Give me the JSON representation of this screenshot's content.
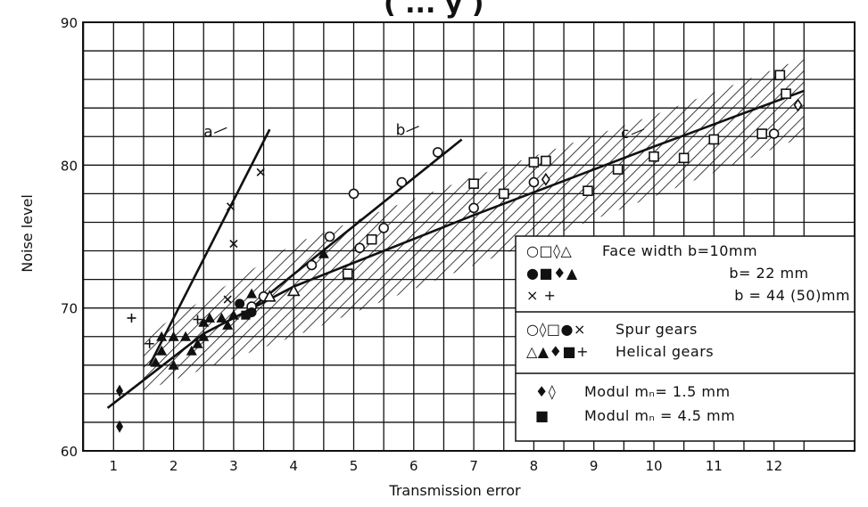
{
  "chart_data": {
    "type": "scatter",
    "title": "",
    "xlabel": "Transmission error",
    "ylabel": "Noise level",
    "xlim": [
      0,
      12.5
    ],
    "ylim": [
      60,
      90
    ],
    "x_ticks": [
      "1",
      "2",
      "3",
      "4",
      "5",
      "6",
      "7",
      "8",
      "9",
      "10",
      "11",
      "12"
    ],
    "y_ticks": [
      "60",
      "70",
      "80",
      "90"
    ],
    "grid": true,
    "band": {
      "upper": [
        [
          1.5,
          68.0
        ],
        [
          4.0,
          74.5
        ],
        [
          7.0,
          79.2
        ],
        [
          10.0,
          83.5
        ],
        [
          12.5,
          87.5
        ]
      ],
      "lower": [
        [
          1.5,
          64.2
        ],
        [
          4.0,
          68.0
        ],
        [
          7.0,
          73.0
        ],
        [
          10.0,
          77.8
        ],
        [
          12.5,
          82.0
        ]
      ]
    },
    "lines": [
      {
        "label": "a",
        "points": [
          [
            1.6,
            66.0
          ],
          [
            3.6,
            82.5
          ]
        ]
      },
      {
        "label": "b",
        "points": [
          [
            3.3,
            70.0
          ],
          [
            6.8,
            81.8
          ]
        ]
      },
      {
        "label": "c",
        "points": [
          [
            0.9,
            63.0
          ],
          [
            2.5,
            68.2
          ],
          [
            4.0,
            71.5
          ],
          [
            7.0,
            76.5
          ],
          [
            10.0,
            81.3
          ],
          [
            12.5,
            85.2
          ]
        ]
      }
    ],
    "line_labels": [
      {
        "text": "a",
        "x": 2.5,
        "y": 82.0
      },
      {
        "text": "b",
        "x": 5.7,
        "y": 82.1
      },
      {
        "text": "c",
        "x": 9.45,
        "y": 81.9
      }
    ],
    "series": [
      {
        "marker": "circle-open",
        "points": [
          [
            5.0,
            78.0
          ],
          [
            5.8,
            78.8
          ],
          [
            6.4,
            80.9
          ],
          [
            4.6,
            75.0
          ],
          [
            5.5,
            75.6
          ],
          [
            5.1,
            74.2
          ],
          [
            4.3,
            73.0
          ],
          [
            7.0,
            77.0
          ],
          [
            8.0,
            78.8
          ],
          [
            3.5,
            70.8
          ],
          [
            3.3,
            70.1
          ],
          [
            12.0,
            82.2
          ]
        ]
      },
      {
        "marker": "square-open",
        "points": [
          [
            7.0,
            78.7
          ],
          [
            7.5,
            78.0
          ],
          [
            8.0,
            80.2
          ],
          [
            8.2,
            80.3
          ],
          [
            8.9,
            78.2
          ],
          [
            9.4,
            79.7
          ],
          [
            10.0,
            80.6
          ],
          [
            10.5,
            80.5
          ],
          [
            11.0,
            81.8
          ],
          [
            11.8,
            82.2
          ],
          [
            12.1,
            86.3
          ],
          [
            12.2,
            85.0
          ],
          [
            4.9,
            72.4
          ],
          [
            5.3,
            74.8
          ]
        ]
      },
      {
        "marker": "diamond-open",
        "points": [
          [
            8.2,
            79.0
          ],
          [
            12.4,
            84.2
          ]
        ]
      },
      {
        "marker": "triangle-open",
        "points": [
          [
            4.0,
            71.2
          ],
          [
            3.6,
            70.8
          ]
        ]
      },
      {
        "marker": "circle-filled",
        "points": [
          [
            3.1,
            70.3
          ],
          [
            3.3,
            69.7
          ]
        ]
      },
      {
        "marker": "square-filled",
        "points": [
          [
            3.2,
            69.5
          ]
        ]
      },
      {
        "marker": "diamond-filled",
        "points": [
          [
            1.1,
            64.2
          ],
          [
            1.1,
            61.7
          ]
        ]
      },
      {
        "marker": "triangle-filled",
        "points": [
          [
            1.7,
            66.2
          ],
          [
            1.8,
            67.0
          ],
          [
            1.8,
            68.0
          ],
          [
            2.0,
            66.0
          ],
          [
            2.0,
            68.0
          ],
          [
            2.2,
            68.0
          ],
          [
            2.3,
            67.0
          ],
          [
            2.4,
            67.5
          ],
          [
            2.5,
            68.0
          ],
          [
            2.5,
            69.0
          ],
          [
            2.6,
            69.3
          ],
          [
            2.8,
            69.3
          ],
          [
            2.9,
            68.8
          ],
          [
            3.0,
            69.5
          ],
          [
            3.3,
            71.0
          ],
          [
            4.5,
            73.8
          ]
        ]
      },
      {
        "marker": "cross",
        "points": [
          [
            2.95,
            77.1
          ],
          [
            3.0,
            74.5
          ],
          [
            3.45,
            79.5
          ],
          [
            2.9,
            70.6
          ]
        ]
      },
      {
        "marker": "plus",
        "points": [
          [
            1.3,
            69.3
          ],
          [
            1.6,
            67.5
          ],
          [
            2.4,
            69.2
          ]
        ]
      }
    ]
  },
  "legend": {
    "row1_symbols": "○□◊△",
    "row1_text": "Face width  b=10mm",
    "row2_symbols": "●■♦▲",
    "row2_text": "b= 22 mm",
    "row3_symbols": "× +",
    "row3_text": "b = 44 (50)mm",
    "row4_symbols": "○◊□●×",
    "row4_text": "Spur gears",
    "row5_symbols": "△▲♦■+",
    "row5_text": "Helical gears",
    "row6_symbols": "♦◊",
    "row6_text": "Modul  mₙ= 1.5 mm",
    "row7_symbols": "■",
    "row7_text": "Modul  mₙ = 4.5 mm"
  },
  "title_fragment": "( ... y )"
}
